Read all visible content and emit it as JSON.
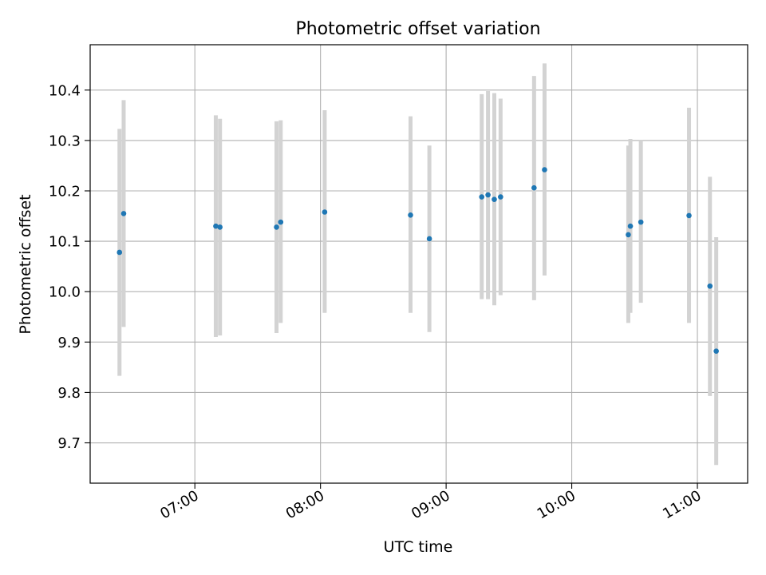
{
  "chart_data": {
    "type": "scatter",
    "title": "Photometric offset variation",
    "xlabel": "UTC time",
    "ylabel": "Photometric offset",
    "x_unit": "time_of_day",
    "xlim": [
      "06:10",
      "11:24"
    ],
    "ylim": [
      9.62,
      10.49
    ],
    "x_ticks": [
      "07:00",
      "08:00",
      "09:00",
      "10:00",
      "11:00"
    ],
    "y_ticks": [
      9.7,
      9.8,
      9.9,
      10.0,
      10.1,
      10.2,
      10.3,
      10.4
    ],
    "y_tick_labels": [
      "9.7",
      "9.8",
      "9.9",
      "10.0",
      "10.1",
      "10.2",
      "10.3",
      "10.4"
    ],
    "grid": true,
    "legend": false,
    "colors": {
      "points": "#1f77b4",
      "error_bars": "#d3d3d3",
      "grid": "#b0b0b0"
    },
    "series": [
      {
        "points": [
          {
            "x": "06:24",
            "y": 10.078,
            "ylo": 9.833,
            "yhi": 10.323
          },
          {
            "x": "06:26",
            "y": 10.155,
            "ylo": 9.93,
            "yhi": 10.38
          },
          {
            "x": "07:10",
            "y": 10.13,
            "ylo": 9.91,
            "yhi": 10.35
          },
          {
            "x": "07:12",
            "y": 10.128,
            "ylo": 9.913,
            "yhi": 10.343
          },
          {
            "x": "07:39",
            "y": 10.128,
            "ylo": 9.918,
            "yhi": 10.338
          },
          {
            "x": "07:41",
            "y": 10.138,
            "ylo": 9.938,
            "yhi": 10.34
          },
          {
            "x": "08:02",
            "y": 10.158,
            "ylo": 9.958,
            "yhi": 10.36
          },
          {
            "x": "08:43",
            "y": 10.152,
            "ylo": 9.958,
            "yhi": 10.348
          },
          {
            "x": "08:52",
            "y": 10.105,
            "ylo": 9.92,
            "yhi": 10.29
          },
          {
            "x": "09:17",
            "y": 10.188,
            "ylo": 9.985,
            "yhi": 10.392
          },
          {
            "x": "09:20",
            "y": 10.192,
            "ylo": 9.985,
            "yhi": 10.398
          },
          {
            "x": "09:23",
            "y": 10.183,
            "ylo": 9.973,
            "yhi": 10.394
          },
          {
            "x": "09:26",
            "y": 10.188,
            "ylo": 9.993,
            "yhi": 10.383
          },
          {
            "x": "09:42",
            "y": 10.206,
            "ylo": 9.983,
            "yhi": 10.428
          },
          {
            "x": "09:47",
            "y": 10.242,
            "ylo": 10.032,
            "yhi": 10.453
          },
          {
            "x": "10:27",
            "y": 10.113,
            "ylo": 9.938,
            "yhi": 10.29
          },
          {
            "x": "10:28",
            "y": 10.13,
            "ylo": 9.958,
            "yhi": 10.303
          },
          {
            "x": "10:33",
            "y": 10.138,
            "ylo": 9.978,
            "yhi": 10.3
          },
          {
            "x": "10:56",
            "y": 10.151,
            "ylo": 9.938,
            "yhi": 10.365
          },
          {
            "x": "11:06",
            "y": 10.011,
            "ylo": 9.793,
            "yhi": 10.228
          },
          {
            "x": "11:09",
            "y": 9.882,
            "ylo": 9.656,
            "yhi": 10.108
          }
        ]
      }
    ]
  }
}
